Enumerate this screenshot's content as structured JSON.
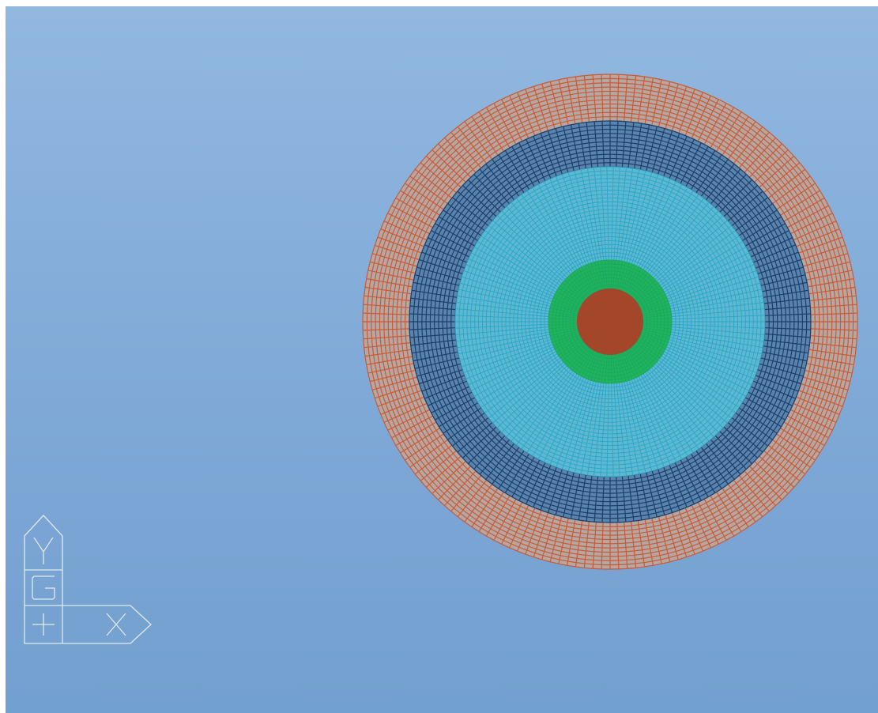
{
  "viewport": {
    "background_top": "#92b8e0",
    "background_bottom": "#72a0cf"
  },
  "mesh": {
    "shape": "concentric circular quad mesh",
    "regions": [
      {
        "name": "outer-ring",
        "color": "#d2623a",
        "stroke": "#c85a36"
      },
      {
        "name": "dark-blue-ring",
        "color": "#1f4c7e",
        "stroke": "#1a3f6c"
      },
      {
        "name": "cyan-ring",
        "color": "#2aa3c4",
        "stroke": "#29a6c6"
      },
      {
        "name": "green-ring",
        "color": "#19b055",
        "stroke": "#1aa860"
      },
      {
        "name": "core",
        "color": "#a3462a",
        "stroke": "#a3462a"
      }
    ]
  },
  "triad": {
    "color": "#dfeae8",
    "y_label": "Y",
    "global_label": "G",
    "origin_label": "+",
    "x_label": "X"
  }
}
